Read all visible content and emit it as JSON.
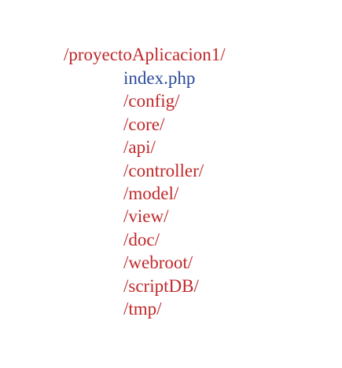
{
  "tree": {
    "root": "/proyectoAplicacion1/",
    "children": [
      {
        "label": "index.php",
        "kind": "file"
      },
      {
        "label": "/config/",
        "kind": "folder"
      },
      {
        "label": "/core/",
        "kind": "folder"
      },
      {
        "label": "/api/",
        "kind": "folder"
      },
      {
        "label": "/controller/",
        "kind": "folder"
      },
      {
        "label": "/model/",
        "kind": "folder"
      },
      {
        "label": "/view/",
        "kind": "folder"
      },
      {
        "label": "/doc/",
        "kind": "folder"
      },
      {
        "label": "/webroot/",
        "kind": "folder"
      },
      {
        "label": "/scriptDB/",
        "kind": "folder"
      },
      {
        "label": "/tmp/",
        "kind": "folder"
      }
    ]
  },
  "colors": {
    "folder": "#c0282a",
    "file": "#2b4a9b"
  }
}
